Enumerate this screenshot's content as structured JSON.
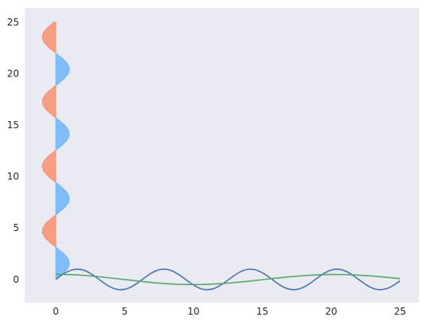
{
  "chart_data": {
    "type": "line",
    "title": "",
    "xlabel": "",
    "ylabel": "",
    "xlim": [
      -2.26,
      26.38
    ],
    "ylim": [
      -2.26,
      26.38
    ],
    "grid": false,
    "background": "#eaeaf2",
    "x_ticks": [
      "0",
      "5",
      "10",
      "15",
      "20",
      "25"
    ],
    "y_ticks": [
      "0",
      "5",
      "10",
      "15",
      "20",
      "25"
    ],
    "series": [
      {
        "kind": "line",
        "color": "#4c72b0",
        "x": [
          0.0,
          0.5,
          1.0,
          1.5,
          2.0,
          2.5,
          3.0,
          3.5,
          4.0,
          4.5,
          5.0,
          5.5,
          6.0,
          6.5,
          7.0,
          7.5,
          8.0,
          8.5,
          9.0,
          9.5,
          10.0,
          10.5,
          11.0,
          11.5,
          12.0,
          12.5,
          13.0,
          13.5,
          14.0,
          14.5,
          15.0,
          15.5,
          16.0,
          16.5,
          17.0,
          17.5,
          18.0,
          18.5,
          19.0,
          19.5,
          20.0,
          20.5,
          21.0,
          21.5,
          22.0,
          22.5,
          23.0,
          23.5,
          24.0,
          24.5,
          25.0
        ],
        "y": [
          0.0,
          0.479,
          0.841,
          0.997,
          0.909,
          0.598,
          0.141,
          -0.351,
          -0.757,
          -0.978,
          -0.959,
          -0.706,
          -0.279,
          0.215,
          0.657,
          0.938,
          0.989,
          0.798,
          0.412,
          -0.075,
          -0.544,
          -0.88,
          -1.0,
          -0.875,
          -0.537,
          -0.066,
          0.42,
          0.803,
          0.991,
          0.935,
          0.65,
          0.206,
          -0.288,
          -0.712,
          -0.961,
          -0.976,
          -0.751,
          -0.342,
          0.15,
          0.605,
          0.913,
          0.996,
          0.837,
          0.471,
          -0.009,
          -0.487,
          -0.846,
          -0.998,
          -0.906,
          -0.591,
          -0.132
        ]
      },
      {
        "kind": "line",
        "color": "#55a868",
        "x": [
          0.0,
          1.0,
          2.0,
          3.0,
          4.0,
          5.0,
          6.0,
          7.0,
          8.0,
          9.0,
          10.0,
          11.0,
          12.0,
          13.0,
          14.0,
          15.0,
          16.0,
          17.0,
          18.0,
          19.0,
          20.0,
          21.0,
          22.0,
          23.0,
          24.0,
          25.0
        ],
        "y": [
          0.5,
          0.474,
          0.398,
          0.282,
          0.139,
          -0.013,
          -0.162,
          -0.298,
          -0.405,
          -0.475,
          -0.5,
          -0.477,
          -0.41,
          -0.306,
          -0.173,
          -0.026,
          0.124,
          0.26,
          0.37,
          0.445,
          0.48,
          0.469,
          0.415,
          0.326,
          0.21,
          0.079
        ]
      },
      {
        "kind": "fill_betweenx",
        "positive_color": "#66b2ff",
        "negative_color": "#f98a68",
        "y": [
          0.0,
          0.5,
          1.0,
          1.5,
          2.0,
          2.5,
          3.0,
          3.5,
          4.0,
          4.5,
          5.0,
          5.5,
          6.0,
          6.5,
          7.0,
          7.5,
          8.0,
          8.5,
          9.0,
          9.5,
          10.0,
          10.5,
          11.0,
          11.5,
          12.0,
          12.5,
          13.0,
          13.5,
          14.0,
          14.5,
          15.0,
          15.5,
          16.0,
          16.5,
          17.0,
          17.5,
          18.0,
          18.5,
          19.0,
          19.5,
          20.0,
          20.5,
          21.0,
          21.5,
          22.0,
          22.5,
          23.0,
          23.5,
          24.0,
          24.5,
          25.0
        ],
        "x": [
          0.0,
          0.479,
          0.841,
          0.997,
          0.909,
          0.598,
          0.141,
          -0.351,
          -0.757,
          -0.978,
          -0.959,
          -0.706,
          -0.279,
          0.215,
          0.657,
          0.938,
          0.989,
          0.798,
          0.412,
          -0.075,
          -0.544,
          -0.88,
          -1.0,
          -0.875,
          -0.537,
          -0.066,
          0.42,
          0.803,
          0.991,
          0.935,
          0.65,
          0.206,
          -0.288,
          -0.712,
          -0.961,
          -0.976,
          -0.751,
          -0.342,
          0.15,
          0.605,
          0.913,
          0.996,
          0.837,
          0.471,
          -0.009,
          -0.487,
          -0.846,
          -0.998,
          -0.906,
          -0.591,
          -0.132
        ]
      }
    ]
  }
}
